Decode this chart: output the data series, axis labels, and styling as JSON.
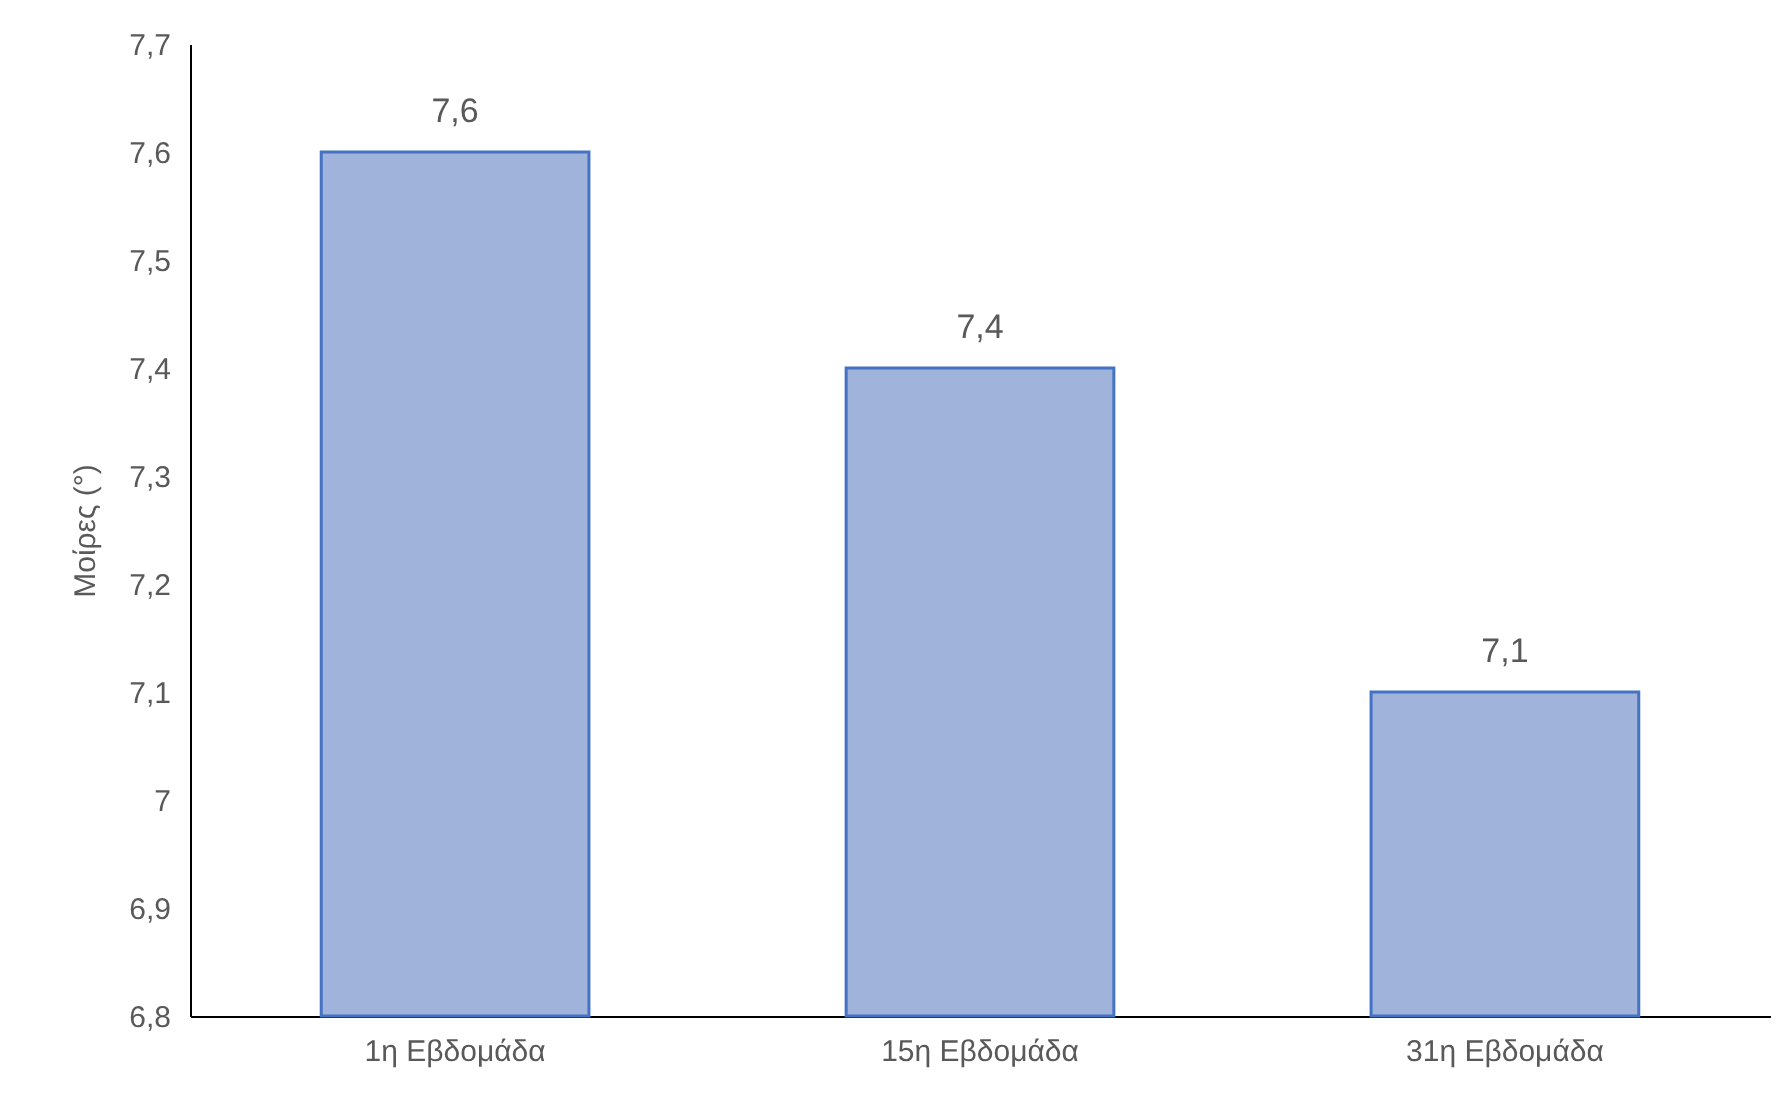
{
  "chart_data": {
    "type": "bar",
    "ylabel": "Μοίρες (°)",
    "categories": [
      "1η Εβδομάδα",
      "15η Εβδομάδα",
      "31η Εβδομάδα"
    ],
    "values": [
      7.6,
      7.4,
      7.1
    ],
    "value_labels": [
      "7,6",
      "7,4",
      "7,1"
    ],
    "color": "#9fb3db",
    "ylim": [
      6.8,
      7.7
    ],
    "yticks": [
      {
        "value": 6.8,
        "label": "6,8"
      },
      {
        "value": 6.9,
        "label": "6,9"
      },
      {
        "value": 7,
        "label": "7"
      },
      {
        "value": 7.1,
        "label": "7,1"
      },
      {
        "value": 7.2,
        "label": "7,2"
      },
      {
        "value": 7.3,
        "label": "7,3"
      },
      {
        "value": 7.4,
        "label": "7,4"
      },
      {
        "value": 7.5,
        "label": "7,5"
      },
      {
        "value": 7.6,
        "label": "7,6"
      },
      {
        "value": 7.7,
        "label": "7,7"
      }
    ],
    "grid": false
  }
}
